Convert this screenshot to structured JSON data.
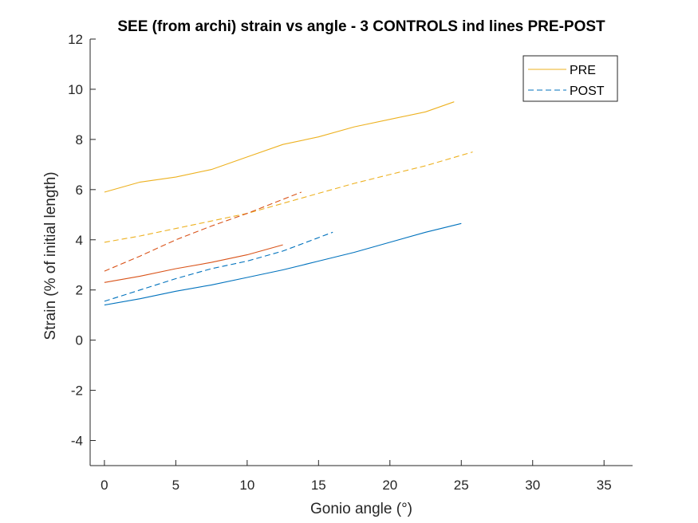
{
  "chart_data": {
    "type": "line",
    "title": "SEE (from archi) strain vs angle - 3 CONTROLS ind lines PRE-POST",
    "xlabel": "Gonio angle (°)",
    "ylabel": "Strain (% of initial length)",
    "xlim": [
      -1,
      37
    ],
    "ylim": [
      -5,
      12
    ],
    "xticks": [
      0,
      5,
      10,
      15,
      20,
      25,
      30,
      35
    ],
    "yticks": [
      -4,
      -2,
      0,
      2,
      4,
      6,
      8,
      10,
      12
    ],
    "grid": false,
    "legend": {
      "placement": "top-right",
      "entries": [
        {
          "label": "PRE",
          "color": "#EDB120",
          "dash": "solid"
        },
        {
          "label": "POST",
          "color": "#0072BD",
          "dash": "dashed"
        }
      ]
    },
    "series": [
      {
        "color": "#EDB120",
        "dash": "solid",
        "x": [
          0,
          2.5,
          5,
          7.5,
          10,
          12.5,
          15,
          17.5,
          20,
          22.5,
          24.5
        ],
        "y": [
          5.9,
          6.3,
          6.5,
          6.8,
          7.3,
          7.8,
          8.1,
          8.5,
          8.8,
          9.1,
          9.5
        ]
      },
      {
        "color": "#D95319",
        "dash": "solid",
        "x": [
          0,
          2.5,
          5,
          7.5,
          10,
          12.5
        ],
        "y": [
          2.3,
          2.55,
          2.85,
          3.1,
          3.4,
          3.8
        ]
      },
      {
        "color": "#0072BD",
        "dash": "solid",
        "x": [
          0,
          2.5,
          5,
          7.5,
          10,
          12.5,
          15,
          17.5,
          20,
          22.5,
          25
        ],
        "y": [
          1.4,
          1.65,
          1.95,
          2.2,
          2.5,
          2.8,
          3.15,
          3.5,
          3.9,
          4.3,
          4.65
        ]
      },
      {
        "color": "#EDB120",
        "dash": "dashed",
        "x": [
          0,
          2.5,
          5,
          7.5,
          10,
          12.5,
          15,
          17.5,
          20,
          22.5,
          25.8
        ],
        "y": [
          3.9,
          4.15,
          4.45,
          4.75,
          5.05,
          5.45,
          5.85,
          6.25,
          6.6,
          6.95,
          7.5
        ]
      },
      {
        "color": "#D95319",
        "dash": "dashed",
        "x": [
          0,
          2.5,
          5,
          7.5,
          10,
          12,
          13.8
        ],
        "y": [
          2.75,
          3.35,
          4.0,
          4.55,
          5.05,
          5.5,
          5.9
        ]
      },
      {
        "color": "#0072BD",
        "dash": "dashed",
        "x": [
          0,
          2.5,
          5,
          7.5,
          10,
          12.5,
          16
        ],
        "y": [
          1.55,
          2.0,
          2.45,
          2.85,
          3.15,
          3.55,
          4.3
        ]
      }
    ]
  }
}
